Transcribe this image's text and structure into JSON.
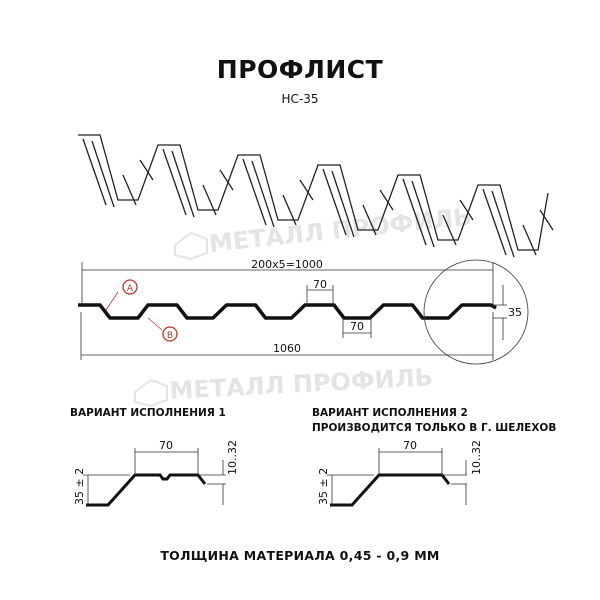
{
  "title": "ПРОФЛИСТ",
  "subtitle": "НС-35",
  "watermark": "МЕТАЛЛ ПРОФИЛЬ",
  "dimensions": {
    "pitch": "200x5=1000",
    "total_width": "1060",
    "crest_width": "70",
    "valley_width": "70",
    "height": "35",
    "marker_a": "A",
    "marker_b": "B"
  },
  "variant1": {
    "label": "ВАРИАНТ ИСПОЛНЕНИЯ 1",
    "width": "70",
    "height": "35 ± 2",
    "edge": "10..32"
  },
  "variant2": {
    "label": "ВАРИАНТ ИСПОЛНЕНИЯ 2",
    "note": "ПРОИЗВОДИТСЯ ТОЛЬКО В Г. ШЕЛЕХОВ",
    "width": "70",
    "height": "35 ± 2",
    "edge": "10..32"
  },
  "footer": "ТОЛЩИНА МАТЕРИАЛА 0,45 - 0,9 ММ",
  "colors": {
    "marker": "#b8372a",
    "line": "#111111",
    "watermark": "#e4e4e4"
  }
}
